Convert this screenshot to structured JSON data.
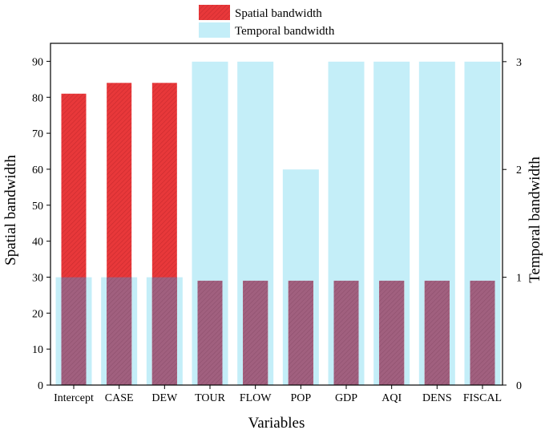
{
  "chart_data": {
    "type": "bar",
    "categories": [
      "Intercept",
      "CASE",
      "DEW",
      "TOUR",
      "FLOW",
      "POP",
      "GDP",
      "AQI",
      "DENS",
      "FISCAL"
    ],
    "series": [
      {
        "name": "Spatial bandwidth",
        "axis": "left",
        "values": [
          81,
          84,
          84,
          29,
          29,
          29,
          29,
          29,
          29,
          29
        ],
        "color": "#e8383a",
        "pattern": "hatched"
      },
      {
        "name": "Temporal bandwidth",
        "axis": "right",
        "values": [
          1,
          1,
          1,
          3,
          3,
          2,
          3,
          3,
          3,
          3
        ],
        "color": "#c4eef8"
      }
    ],
    "overlap_color": "#a1607f",
    "xlabel": "Variables",
    "ylabel": "Spatial bandwidth",
    "y2label": "Temporal bandwidth",
    "ylim": [
      0,
      95
    ],
    "y2lim": [
      0,
      3.17
    ],
    "yticks": [
      0,
      10,
      20,
      30,
      40,
      50,
      60,
      70,
      80,
      90
    ],
    "y2ticks": [
      0,
      1,
      2,
      3
    ],
    "grid": false,
    "legend_position": "top-center"
  }
}
